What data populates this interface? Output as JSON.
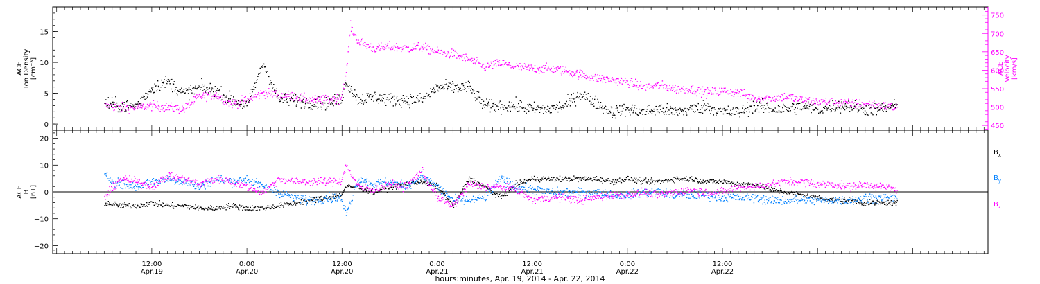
{
  "chart_data": [
    {
      "type": "scatter",
      "panel": "top",
      "ylabel_left": [
        "ACE",
        "Ion Density",
        "[cm⁻³]"
      ],
      "ylabel_right": [
        "ACE",
        "Velocity",
        "[km/s]"
      ],
      "ylim_left": [
        -1,
        19
      ],
      "ylim_right": [
        437,
        772
      ],
      "yticks_left": [
        "0",
        "5",
        "10",
        "15"
      ],
      "yticks_right": [
        "450",
        "500",
        "550",
        "600",
        "650",
        "700",
        "750"
      ],
      "x_hours_anchor_note": "x in hours since 00:00 Apr.19, 2014",
      "series": [
        {
          "name": "Ion Density",
          "color": "#000000",
          "axis": "left",
          "x": [
            6,
            8,
            10,
            12,
            14,
            16,
            18,
            20,
            22,
            24,
            26,
            28,
            30,
            32,
            34,
            35.8,
            36.5,
            38,
            40,
            42,
            44,
            46,
            48,
            50,
            52,
            54,
            56,
            58,
            60,
            62,
            64,
            66,
            68,
            70,
            72,
            74,
            76,
            78,
            80,
            82,
            84,
            86,
            88,
            90,
            92,
            94,
            96,
            98,
            100,
            102,
            104,
            106
          ],
          "values": [
            3.5,
            3,
            3,
            6,
            7,
            5,
            6,
            5.5,
            4,
            3,
            10,
            4,
            4,
            3.5,
            3.5,
            4,
            7,
            4,
            4.5,
            4,
            4,
            4,
            6,
            6,
            6,
            3,
            3,
            3,
            2.5,
            2.5,
            3,
            5,
            3.5,
            2,
            2.5,
            2,
            2.5,
            2,
            2.5,
            3,
            2,
            2,
            3,
            2.5,
            2.5,
            3,
            2.5,
            3,
            3,
            2.5,
            2.5,
            3
          ]
        },
        {
          "name": "Velocity",
          "color": "#ff00ff",
          "axis": "right",
          "x": [
            6,
            8,
            10,
            12,
            14,
            16,
            18,
            20,
            22,
            24,
            26,
            28,
            30,
            32,
            34,
            35.8,
            36.5,
            37,
            38,
            40,
            42,
            44,
            46,
            48,
            50,
            52,
            54,
            56,
            58,
            60,
            62,
            64,
            66,
            68,
            70,
            72,
            74,
            76,
            78,
            80,
            82,
            84,
            86,
            88,
            90,
            92,
            94,
            96,
            98,
            100,
            102,
            104,
            106
          ],
          "values": [
            505,
            500,
            500,
            505,
            500,
            495,
            530,
            535,
            510,
            520,
            540,
            535,
            530,
            520,
            520,
            525,
            590,
            720,
            680,
            660,
            665,
            660,
            665,
            650,
            645,
            630,
            610,
            620,
            610,
            605,
            605,
            600,
            590,
            580,
            575,
            570,
            555,
            560,
            550,
            550,
            540,
            545,
            540,
            525,
            525,
            530,
            520,
            515,
            515,
            510,
            510,
            505,
            500
          ]
        }
      ]
    },
    {
      "type": "scatter",
      "panel": "bottom",
      "ylabel_left": [
        "ACE",
        "B",
        "[nT]"
      ],
      "ylim": [
        -23,
        23
      ],
      "yticks_left": [
        "−20",
        "−10",
        "0",
        "10",
        "20"
      ],
      "reference_line": 0,
      "series": [
        {
          "name": "Bx",
          "label_main": "B",
          "label_sub": "x",
          "color": "#000000",
          "x": [
            6,
            8,
            10,
            12,
            14,
            16,
            18,
            20,
            22,
            24,
            26,
            28,
            30,
            32,
            34,
            35.8,
            36.5,
            38,
            40,
            42,
            44,
            46,
            48,
            50,
            52,
            54,
            56,
            58,
            60,
            62,
            64,
            66,
            68,
            70,
            72,
            74,
            76,
            78,
            80,
            82,
            84,
            86,
            88,
            90,
            92,
            94,
            96,
            98,
            100,
            102,
            104,
            106
          ],
          "values": [
            -4,
            -5,
            -5,
            -4,
            -5,
            -5,
            -6,
            -6,
            -5,
            -6,
            -6,
            -5,
            -4,
            -3,
            -2,
            -1,
            2,
            2,
            0,
            2,
            3,
            4,
            2,
            -5,
            5,
            2,
            -2,
            3,
            5,
            5,
            5,
            5,
            5,
            4,
            5,
            4,
            4,
            5,
            5,
            4,
            4,
            3,
            3,
            1,
            0,
            -1,
            -2,
            -3,
            -3,
            -4,
            -4,
            -4
          ]
        },
        {
          "name": "By",
          "label_main": "B",
          "label_sub": "y",
          "color": "#0080ff",
          "x": [
            6,
            8,
            10,
            12,
            14,
            16,
            18,
            20,
            22,
            24,
            26,
            28,
            30,
            32,
            34,
            35.8,
            36.5,
            38,
            40,
            42,
            44,
            46,
            48,
            50,
            52,
            54,
            56,
            58,
            60,
            62,
            64,
            66,
            68,
            70,
            72,
            74,
            76,
            78,
            80,
            82,
            84,
            86,
            88,
            90,
            92,
            94,
            96,
            98,
            100,
            102,
            104,
            106
          ],
          "values": [
            6,
            3,
            2,
            4,
            5,
            4,
            2,
            5,
            4,
            5,
            2,
            0,
            -2,
            -3,
            -2,
            -2,
            -8,
            5,
            3,
            4,
            2,
            6,
            2,
            -3,
            -3,
            -2,
            5,
            2,
            1,
            0,
            0,
            0,
            0,
            -1,
            -1,
            0,
            0,
            -1,
            -1,
            -1,
            -2,
            -2,
            -2,
            -3,
            -3,
            -3,
            -3,
            -3,
            -3,
            -2,
            -2,
            -2
          ]
        },
        {
          "name": "Bz",
          "label_main": "B",
          "label_sub": "z",
          "color": "#ff00ff",
          "x": [
            6,
            8,
            10,
            12,
            14,
            16,
            18,
            20,
            22,
            24,
            26,
            28,
            30,
            32,
            34,
            35.8,
            36.5,
            38,
            40,
            42,
            44,
            46,
            48,
            50,
            52,
            54,
            56,
            58,
            60,
            62,
            64,
            66,
            68,
            70,
            72,
            74,
            76,
            78,
            80,
            82,
            84,
            86,
            88,
            90,
            92,
            94,
            96,
            98,
            100,
            102,
            104,
            106
          ],
          "values": [
            -2,
            5,
            4,
            2,
            6,
            5,
            3,
            5,
            4,
            2,
            0,
            5,
            4,
            4,
            4,
            4,
            10,
            2,
            1,
            3,
            2,
            8,
            -2,
            -5,
            3,
            2,
            2,
            1,
            -3,
            -2,
            -2,
            -3,
            -2,
            -1,
            -1,
            0,
            -1,
            0,
            1,
            0,
            0,
            2,
            2,
            3,
            4,
            4,
            3,
            3,
            2,
            3,
            2,
            1
          ]
        }
      ]
    }
  ],
  "x_axis": {
    "xlim_hours": [
      -0.5,
      117.5
    ],
    "ticks": [
      {
        "h": 12,
        "time": "12:00",
        "date": "Apr.19"
      },
      {
        "h": 24,
        "time": "0:00",
        "date": "Apr.20"
      },
      {
        "h": 36,
        "time": "12:00",
        "date": "Apr.20"
      },
      {
        "h": 48,
        "time": "0:00",
        "date": "Apr.21"
      },
      {
        "h": 60,
        "time": "12:00",
        "date": "Apr.21"
      },
      {
        "h": 72,
        "time": "0:00",
        "date": "Apr.22"
      },
      {
        "h": 84,
        "time": "12:00",
        "date": "Apr.22"
      }
    ],
    "xlabel": "hours:minutes, Apr. 19, 2014 - Apr. 22, 2014"
  }
}
